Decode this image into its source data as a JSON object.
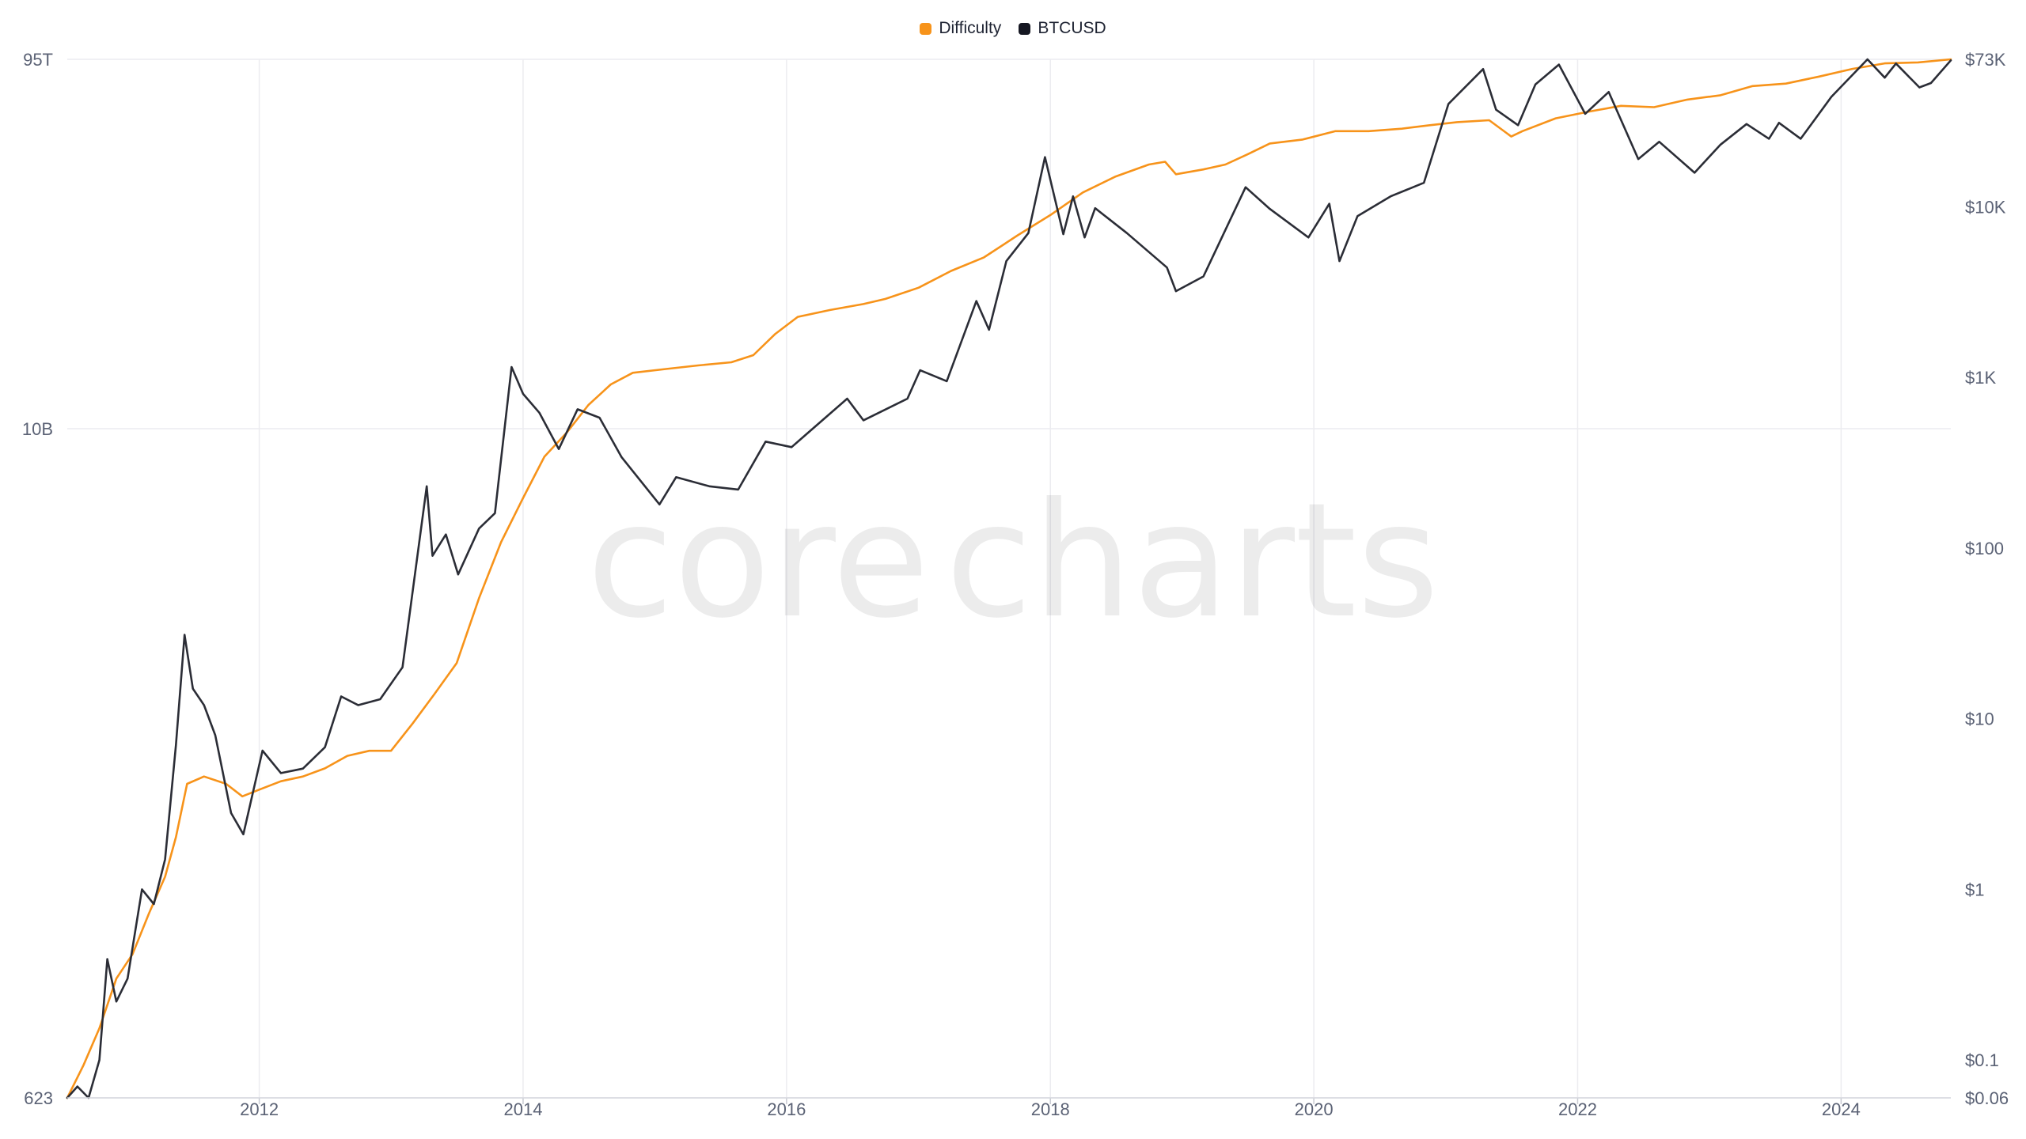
{
  "watermark": {
    "part1": "core",
    "part2": "charts"
  },
  "chart_data": {
    "type": "line",
    "title": "",
    "legend": {
      "placement": "top-center",
      "entries": [
        "Difficulty",
        "BTCUSD"
      ]
    },
    "grid": true,
    "x_axis": {
      "type": "date",
      "range": [
        "2010-07-18",
        "2024-10-31"
      ],
      "ticks": [
        "2012",
        "2014",
        "2016",
        "2018",
        "2020",
        "2022",
        "2024"
      ]
    },
    "y_left": {
      "scale": "log",
      "range": [
        623,
        95000000000000
      ],
      "ticks": [
        "95T",
        "10B",
        "623"
      ]
    },
    "y_right": {
      "scale": "log",
      "range": [
        0.06,
        73000
      ],
      "ticks": [
        "$73K",
        "$10K",
        "$1K",
        "$100",
        "$10",
        "$1",
        "$0.1",
        "$0.06"
      ]
    },
    "series": [
      {
        "name": "Difficulty",
        "axis": "left",
        "color": "#f7931a",
        "points": [
          [
            "2010-07-18",
            623
          ],
          [
            "2010-09-01",
            1400
          ],
          [
            "2010-10-15",
            3500
          ],
          [
            "2010-12-01",
            12000
          ],
          [
            "2011-01-15",
            22000
          ],
          [
            "2011-03-01",
            60000
          ],
          [
            "2011-04-15",
            150000
          ],
          [
            "2011-05-15",
            400000
          ],
          [
            "2011-06-15",
            1500000
          ],
          [
            "2011-08-01",
            1800000
          ],
          [
            "2011-10-01",
            1500000
          ],
          [
            "2011-11-15",
            1100000
          ],
          [
            "2012-01-01",
            1300000
          ],
          [
            "2012-03-01",
            1600000
          ],
          [
            "2012-05-01",
            1800000
          ],
          [
            "2012-07-01",
            2200000
          ],
          [
            "2012-09-01",
            3000000
          ],
          [
            "2012-11-01",
            3400000
          ],
          [
            "2012-12-31",
            3400000
          ],
          [
            "2013-03-01",
            6700000
          ],
          [
            "2013-05-01",
            14000000
          ],
          [
            "2013-07-01",
            30000000
          ],
          [
            "2013-09-01",
            150000000
          ],
          [
            "2013-11-01",
            600000000
          ],
          [
            "2014-01-01",
            1800000000
          ],
          [
            "2014-03-01",
            5000000000
          ],
          [
            "2014-05-01",
            9000000000
          ],
          [
            "2014-07-01",
            18000000000
          ],
          [
            "2014-09-01",
            30000000000
          ],
          [
            "2014-11-01",
            40000000000
          ],
          [
            "2015-02-01",
            44000000000
          ],
          [
            "2015-05-01",
            48000000000
          ],
          [
            "2015-08-01",
            52000000000
          ],
          [
            "2015-10-01",
            62000000000
          ],
          [
            "2015-12-01",
            105000000000
          ],
          [
            "2016-02-01",
            160000000000
          ],
          [
            "2016-05-01",
            190000000000
          ],
          [
            "2016-08-01",
            220000000000
          ],
          [
            "2016-10-01",
            250000000000
          ],
          [
            "2017-01-01",
            330000000000
          ],
          [
            "2017-04-01",
            500000000000
          ],
          [
            "2017-07-01",
            700000000000
          ],
          [
            "2017-10-01",
            1200000000000
          ],
          [
            "2018-01-01",
            2000000000000
          ],
          [
            "2018-04-01",
            3500000000000
          ],
          [
            "2018-07-01",
            5200000000000
          ],
          [
            "2018-10-01",
            7000000000000
          ],
          [
            "2018-11-15",
            7500000000000
          ],
          [
            "2018-12-15",
            5500000000000
          ],
          [
            "2019-03-01",
            6200000000000
          ],
          [
            "2019-05-01",
            7000000000000
          ],
          [
            "2019-07-01",
            9000000000000
          ],
          [
            "2019-09-01",
            11800000000000
          ],
          [
            "2019-12-01",
            13000000000000
          ],
          [
            "2020-03-01",
            16000000000000
          ],
          [
            "2020-06-01",
            16000000000000
          ],
          [
            "2020-09-01",
            17000000000000
          ],
          [
            "2020-11-15",
            18500000000000
          ],
          [
            "2021-02-01",
            20000000000000
          ],
          [
            "2021-05-01",
            21000000000000
          ],
          [
            "2021-07-01",
            14000000000000
          ],
          [
            "2021-08-01",
            16000000000000
          ],
          [
            "2021-11-01",
            22000000000000
          ],
          [
            "2022-02-01",
            26000000000000
          ],
          [
            "2022-05-01",
            30000000000000
          ],
          [
            "2022-08-01",
            29000000000000
          ],
          [
            "2022-11-01",
            35000000000000
          ],
          [
            "2023-02-01",
            39000000000000
          ],
          [
            "2023-05-01",
            49000000000000
          ],
          [
            "2023-08-01",
            52000000000000
          ],
          [
            "2023-11-01",
            62000000000000
          ],
          [
            "2024-02-01",
            75000000000000
          ],
          [
            "2024-05-01",
            86000000000000
          ],
          [
            "2024-08-01",
            88000000000000
          ],
          [
            "2024-10-31",
            95000000000000
          ]
        ]
      },
      {
        "name": "BTCUSD",
        "axis": "right",
        "color": "#2b2d36",
        "points": [
          [
            "2010-07-18",
            0.06
          ],
          [
            "2010-08-15",
            0.07
          ],
          [
            "2010-09-15",
            0.06
          ],
          [
            "2010-10-15",
            0.1
          ],
          [
            "2010-11-06",
            0.39
          ],
          [
            "2010-12-01",
            0.22
          ],
          [
            "2011-01-01",
            0.3
          ],
          [
            "2011-02-10",
            1.0
          ],
          [
            "2011-03-15",
            0.82
          ],
          [
            "2011-04-15",
            1.5
          ],
          [
            "2011-05-15",
            7.0
          ],
          [
            "2011-06-08",
            31.0
          ],
          [
            "2011-07-01",
            15.0
          ],
          [
            "2011-08-01",
            12.0
          ],
          [
            "2011-09-01",
            8.0
          ],
          [
            "2011-10-15",
            2.8
          ],
          [
            "2011-11-18",
            2.1
          ],
          [
            "2012-01-10",
            6.5
          ],
          [
            "2012-03-01",
            4.8
          ],
          [
            "2012-05-01",
            5.1
          ],
          [
            "2012-07-01",
            6.8
          ],
          [
            "2012-08-15",
            13.5
          ],
          [
            "2012-10-01",
            12.0
          ],
          [
            "2012-12-01",
            13.0
          ],
          [
            "2013-02-01",
            20.0
          ],
          [
            "2013-04-09",
            230.0
          ],
          [
            "2013-04-25",
            90.0
          ],
          [
            "2013-06-01",
            120.0
          ],
          [
            "2013-07-05",
            70.0
          ],
          [
            "2013-09-01",
            130.0
          ],
          [
            "2013-10-15",
            160.0
          ],
          [
            "2013-11-30",
            1150.0
          ],
          [
            "2014-01-01",
            800.0
          ],
          [
            "2014-02-15",
            620.0
          ],
          [
            "2014-04-10",
            380.0
          ],
          [
            "2014-06-01",
            650.0
          ],
          [
            "2014-08-01",
            580.0
          ],
          [
            "2014-10-01",
            340.0
          ],
          [
            "2015-01-14",
            180.0
          ],
          [
            "2015-03-01",
            260.0
          ],
          [
            "2015-06-01",
            230.0
          ],
          [
            "2015-08-20",
            220.0
          ],
          [
            "2015-11-04",
            420.0
          ],
          [
            "2016-01-15",
            390.0
          ],
          [
            "2016-06-17",
            750.0
          ],
          [
            "2016-08-01",
            560.0
          ],
          [
            "2016-12-01",
            750.0
          ],
          [
            "2017-01-05",
            1100.0
          ],
          [
            "2017-03-20",
            950.0
          ],
          [
            "2017-06-10",
            2800.0
          ],
          [
            "2017-07-15",
            1900.0
          ],
          [
            "2017-09-01",
            4800.0
          ],
          [
            "2017-11-01",
            7000.0
          ],
          [
            "2017-12-17",
            19500.0
          ],
          [
            "2018-02-06",
            6900.0
          ],
          [
            "2018-03-05",
            11500.0
          ],
          [
            "2018-04-06",
            6600.0
          ],
          [
            "2018-05-05",
            9800.0
          ],
          [
            "2018-08-01",
            7000.0
          ],
          [
            "2018-11-20",
            4400.0
          ],
          [
            "2018-12-15",
            3200.0
          ],
          [
            "2019-03-01",
            3900.0
          ],
          [
            "2019-06-26",
            13000.0
          ],
          [
            "2019-09-01",
            9700.0
          ],
          [
            "2019-12-17",
            6600.0
          ],
          [
            "2020-02-13",
            10400.0
          ],
          [
            "2020-03-12",
            4800.0
          ],
          [
            "2020-05-01",
            8800.0
          ],
          [
            "2020-08-01",
            11500.0
          ],
          [
            "2020-11-01",
            13800.0
          ],
          [
            "2021-01-08",
            40000.0
          ],
          [
            "2021-04-14",
            64000.0
          ],
          [
            "2021-05-20",
            37000.0
          ],
          [
            "2021-07-20",
            30000.0
          ],
          [
            "2021-09-06",
            52000.0
          ],
          [
            "2021-11-10",
            68000.0
          ],
          [
            "2022-01-22",
            35000.0
          ],
          [
            "2022-03-28",
            47000.0
          ],
          [
            "2022-06-18",
            19000.0
          ],
          [
            "2022-08-15",
            24000.0
          ],
          [
            "2022-11-21",
            15800.0
          ],
          [
            "2023-01-31",
            23000.0
          ],
          [
            "2023-04-14",
            30500.0
          ],
          [
            "2023-06-15",
            25000.0
          ],
          [
            "2023-07-13",
            31000.0
          ],
          [
            "2023-09-11",
            25000.0
          ],
          [
            "2023-12-05",
            44000.0
          ],
          [
            "2024-03-14",
            73000.0
          ],
          [
            "2024-05-01",
            57000.0
          ],
          [
            "2024-06-01",
            69000.0
          ],
          [
            "2024-08-05",
            50000.0
          ],
          [
            "2024-09-06",
            53000.0
          ],
          [
            "2024-10-31",
            72000.0
          ]
        ]
      }
    ]
  }
}
